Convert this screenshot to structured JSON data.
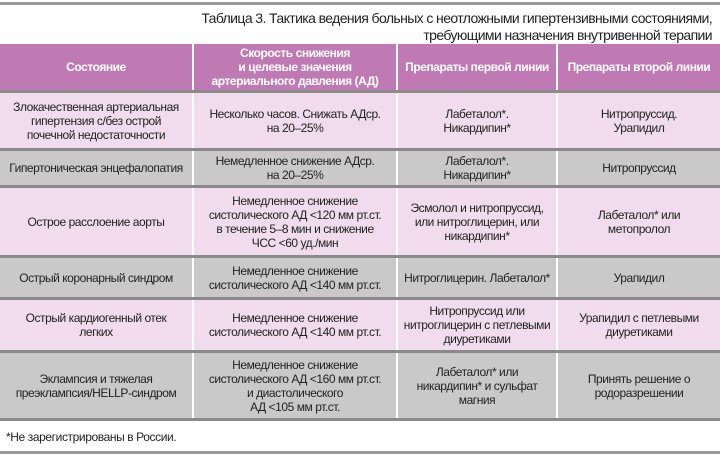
{
  "title": "Таблица 3. Тактика ведения больных с неотложными гипертензивными состояниями,\nтребующими назначения внутривенной терапии",
  "colors": {
    "header": "#bf79b3",
    "row_pink": "#f0dcec",
    "row_gray": "#c9c9c9"
  },
  "table": {
    "headers": [
      "Состояние",
      "Скорость снижения\nи целевые значения\nартериального давления (АД)",
      "Препараты первой линии",
      "Препараты второй линии"
    ],
    "rows": [
      [
        "Злокачественная артериальная\nгипертензия с/без острой\nпочечной недостаточности",
        "Несколько часов. Снижать АДср.\nна 20–25%",
        "Лабеталол*.\nНикардипин*",
        "Нитропруссид.\nУрапидил"
      ],
      [
        "Гипертоническая энцефалопатия",
        "Немедленное снижение АДср.\nна 20–25%",
        "Лабеталол*.\nНикардипин*",
        "Нитропруссид"
      ],
      [
        "Острое расслоение аорты",
        "Немедленное снижение\nсистолического АД <120 мм рт.ст.\nв течение 5–8 мин и снижение\nЧСС <60 уд./мин",
        "Эсмолол и нитропруссид,\nили нитроглицерин, или\nникардипин*",
        "Лабеталол* или\nметопролол"
      ],
      [
        "Острый коронарный синдром",
        "Немедленное снижение\nсистолического АД <140 мм рт.ст.",
        "Нитроглицерин. Лабеталол*",
        "Урапидил"
      ],
      [
        "Острый кардиогенный отек\nлегких",
        "Немедленное снижение\nсистолического АД <140 мм рт.ст.",
        "Нитропруссид или\nнитроглицерин с петлевыми\nдиуретиками",
        "Урапидил с петлевыми\nдиуретиками"
      ],
      [
        "Эклампсия и тяжелая\nпреэклампсия/HELLP-синдром",
        "Немедленное снижение\nсистолического АД <160 мм рт.ст.\nи диастолического\nАД <105 мм рт.ст.",
        "Лабеталол* или\nникардипин* и сульфат\nмагния",
        "Принять решение о\nродоразрешении"
      ]
    ]
  },
  "footnote": "*Не зарегистрированы в России."
}
